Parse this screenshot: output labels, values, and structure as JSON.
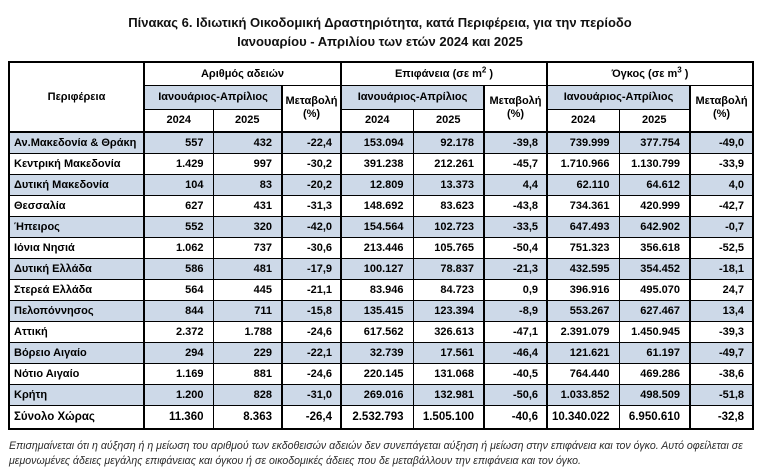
{
  "title": {
    "line1": "Πίνακας 6. Ιδιωτική  Οικοδομική Δραστηριότητα, κατά Περιφέρεια, για την περίοδο",
    "line2": "Ιανουαρίου - Απριλίου των ετών 2024 και 2025"
  },
  "colors": {
    "row_alt": "#cdd9e8",
    "header_shade": "#cdd9e8",
    "border": "#000000",
    "title_color": "#111111",
    "foot_color": "#2b2b2b"
  },
  "table": {
    "region_header": "Περιφέρεια",
    "sections": [
      {
        "title_pre": "Αριθμός αδειών",
        "title_sup": "",
        "title_post": "",
        "period": "Ιανουάριος-Απρίλιος",
        "change_label": "Μεταβολή",
        "change_unit": "(%)",
        "years": [
          "2024",
          "2025"
        ]
      },
      {
        "title_pre": "Επιφάνεια (σε m",
        "title_sup": "2",
        "title_post": " )",
        "period": "Ιανουάριος-Απρίλιος",
        "change_label": "Μεταβολή",
        "change_unit": "(%)",
        "years": [
          "2024",
          "2025"
        ]
      },
      {
        "title_pre": "Όγκος (σε m",
        "title_sup": "3",
        "title_post": " )",
        "period": "Ιανουάριος-Απρίλιος",
        "change_label": "Μεταβολή",
        "change_unit": "(%)",
        "years": [
          "2024",
          "2025"
        ]
      }
    ],
    "rows": [
      {
        "region": "Αν.Μακεδονία & Θράκη",
        "values": [
          "557",
          "432",
          "-22,4",
          "153.094",
          "92.178",
          "-39,8",
          "739.999",
          "377.754",
          "-49,0"
        ],
        "total": false
      },
      {
        "region": "Κεντρική Μακεδονία",
        "values": [
          "1.429",
          "997",
          "-30,2",
          "391.238",
          "212.261",
          "-45,7",
          "1.710.966",
          "1.130.799",
          "-33,9"
        ],
        "total": false
      },
      {
        "region": "Δυτική Μακεδονία",
        "values": [
          "104",
          "83",
          "-20,2",
          "12.809",
          "13.373",
          "4,4",
          "62.110",
          "64.612",
          "4,0"
        ],
        "total": false
      },
      {
        "region": "Θεσσαλία",
        "values": [
          "627",
          "431",
          "-31,3",
          "148.692",
          "83.623",
          "-43,8",
          "734.361",
          "420.999",
          "-42,7"
        ],
        "total": false
      },
      {
        "region": "Ήπειρος",
        "values": [
          "552",
          "320",
          "-42,0",
          "154.564",
          "102.723",
          "-33,5",
          "647.493",
          "642.902",
          "-0,7"
        ],
        "total": false
      },
      {
        "region": "Ιόνια Νησιά",
        "values": [
          "1.062",
          "737",
          "-30,6",
          "213.446",
          "105.765",
          "-50,4",
          "751.323",
          "356.618",
          "-52,5"
        ],
        "total": false
      },
      {
        "region": "Δυτική Ελλάδα",
        "values": [
          "586",
          "481",
          "-17,9",
          "100.127",
          "78.837",
          "-21,3",
          "432.595",
          "354.452",
          "-18,1"
        ],
        "total": false
      },
      {
        "region": "Στερεά Ελλάδα",
        "values": [
          "564",
          "445",
          "-21,1",
          "83.946",
          "84.723",
          "0,9",
          "396.916",
          "495.070",
          "24,7"
        ],
        "total": false
      },
      {
        "region": "Πελοπόννησος",
        "values": [
          "844",
          "711",
          "-15,8",
          "135.415",
          "123.394",
          "-8,9",
          "553.267",
          "627.467",
          "13,4"
        ],
        "total": false
      },
      {
        "region": "Αττική",
        "values": [
          "2.372",
          "1.788",
          "-24,6",
          "617.562",
          "326.613",
          "-47,1",
          "2.391.079",
          "1.450.945",
          "-39,3"
        ],
        "total": false
      },
      {
        "region": "Βόρειο Αιγαίο",
        "values": [
          "294",
          "229",
          "-22,1",
          "32.739",
          "17.561",
          "-46,4",
          "121.621",
          "61.197",
          "-49,7"
        ],
        "total": false
      },
      {
        "region": "Νότιο Αιγαίο",
        "values": [
          "1.169",
          "881",
          "-24,6",
          "220.145",
          "131.068",
          "-40,5",
          "764.440",
          "469.286",
          "-38,6"
        ],
        "total": false
      },
      {
        "region": "Κρήτη",
        "values": [
          "1.200",
          "828",
          "-31,0",
          "269.016",
          "132.981",
          "-50,6",
          "1.033.852",
          "498.509",
          "-51,8"
        ],
        "total": false
      },
      {
        "region": "Σύνολο Χώρας",
        "values": [
          "11.360",
          "8.363",
          "-26,4",
          "2.532.793",
          "1.505.100",
          "-40,6",
          "10.340.022",
          "6.950.610",
          "-32,8"
        ],
        "total": true
      }
    ]
  },
  "footnote": "Επισημαίνεται ότι η αύξηση ή η μείωση του αριθμού των εκδοθεισών αδειών δεν συνεπάγεται αύξηση ή μείωση στην επιφάνεια και τον όγκο. Αυτό οφείλεται σε μεμονωμένες άδειες μεγάλης επιφάνειας και όγκου ή σε οικοδομικές άδειες που δε μεταβάλλουν την επιφάνεια και τον όγκο."
}
